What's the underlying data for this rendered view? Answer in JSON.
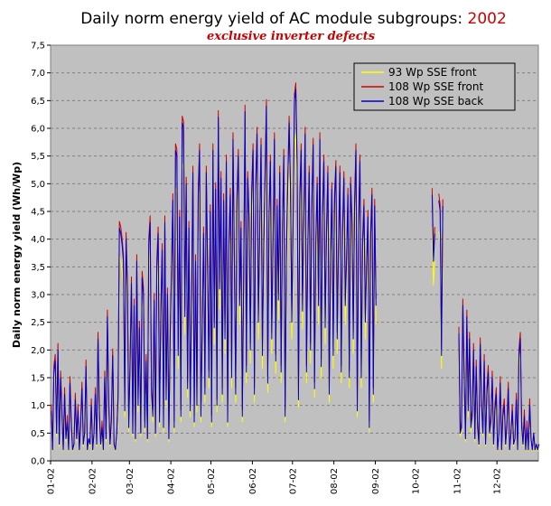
{
  "chart_data": {
    "type": "line",
    "title": "Daily norm energy yield of AC module subgroups:",
    "title_year": "2002",
    "subtitle": "exclusive inverter defects",
    "ylabel": "Daily norm energy yield (Wh/Wp)",
    "xlabel": "",
    "ylim": [
      0,
      7.5
    ],
    "xlim": [
      0,
      365
    ],
    "y_ticks": [
      0,
      0.5,
      1,
      1.5,
      2,
      2.5,
      3,
      3.5,
      4,
      4.5,
      5,
      5.5,
      6,
      6.5,
      7,
      7.5
    ],
    "y_tick_labels": [
      "0,0",
      "0,5",
      "1,0",
      "1,5",
      "2,0",
      "2,5",
      "3,0",
      "3,5",
      "4,0",
      "4,5",
      "5,0",
      "5,5",
      "6,0",
      "6,5",
      "7,0",
      "7,5"
    ],
    "x_ticks": [
      {
        "day": 0,
        "label": "01-02"
      },
      {
        "day": 31,
        "label": "02-02"
      },
      {
        "day": 59,
        "label": "03-02"
      },
      {
        "day": 90,
        "label": "04-02"
      },
      {
        "day": 120,
        "label": "05-02"
      },
      {
        "day": 151,
        "label": "06-02"
      },
      {
        "day": 181,
        "label": "07-02"
      },
      {
        "day": 212,
        "label": "08-02"
      },
      {
        "day": 243,
        "label": "09-02"
      },
      {
        "day": 273,
        "label": "10-02"
      },
      {
        "day": 304,
        "label": "11-02"
      },
      {
        "day": 334,
        "label": "12-02"
      }
    ],
    "grid": true,
    "legend_position": "top-right",
    "series": [
      {
        "name": "93 Wp SSE front",
        "color": "#ffff00",
        "scale": 0.88,
        "lift": 0
      },
      {
        "name": "108 Wp SSE front",
        "color": "#cc0000",
        "scale": 1.0,
        "lift": 0.12
      },
      {
        "name": "108 Wp SSE back",
        "color": "#0000cc",
        "scale": 1.0,
        "lift": 0
      }
    ],
    "days": [
      0.9,
      0.2,
      1.6,
      1.8,
      0.5,
      2.0,
      0.3,
      1.5,
      0.8,
      0.2,
      1.2,
      0.4,
      0.7,
      0.2,
      1.4,
      0.6,
      0.2,
      0.3,
      1.1,
      0.4,
      0.9,
      0.2,
      0.6,
      1.3,
      0.3,
      0.5,
      1.7,
      0.2,
      0.4,
      0.3,
      1.0,
      0.2,
      0.5,
      1.2,
      0.3,
      2.2,
      0.8,
      0.3,
      0.6,
      0.2,
      1.5,
      0.4,
      2.6,
      1.0,
      0.3,
      0.7,
      1.9,
      0.3,
      0.2,
      0.5,
      1.1,
      4.2,
      4.1,
      3.9,
      3.6,
      0.9,
      4.0,
      3.1,
      0.6,
      1.7,
      3.2,
      0.5,
      2.8,
      0.4,
      3.6,
      1.0,
      2.4,
      0.5,
      3.3,
      3.0,
      0.6,
      1.8,
      0.4,
      3.9,
      4.3,
      1.2,
      0.8,
      2.9,
      0.5,
      3.5,
      4.1,
      0.7,
      2.6,
      3.8,
      0.6,
      4.3,
      1.1,
      3.0,
      0.4,
      2.2,
      3.4,
      4.7,
      0.6,
      5.6,
      5.5,
      1.9,
      4.4,
      0.8,
      6.1,
      6.0,
      2.6,
      5.0,
      1.3,
      4.2,
      0.9,
      2.8,
      5.2,
      0.7,
      3.6,
      1.0,
      4.8,
      5.6,
      0.8,
      2.3,
      4.1,
      1.2,
      5.2,
      3.4,
      1.5,
      4.5,
      0.7,
      5.6,
      2.4,
      4.9,
      1.0,
      6.2,
      3.1,
      5.1,
      1.2,
      4.7,
      2.2,
      5.4,
      0.7,
      3.9,
      4.8,
      1.5,
      5.8,
      3.6,
      1.2,
      4.7,
      5.5,
      2.8,
      4.2,
      0.8,
      3.3,
      6.3,
      1.6,
      5.1,
      4.3,
      2.0,
      4.8,
      5.6,
      1.2,
      4.9,
      5.9,
      2.5,
      4.1,
      5.7,
      1.9,
      3.8,
      5.1,
      6.4,
      1.4,
      4.4,
      5.4,
      2.2,
      3.9,
      5.8,
      1.8,
      4.6,
      2.9,
      5.2,
      1.6,
      4.1,
      5.5,
      0.8,
      3.7,
      5.0,
      6.1,
      4.9,
      2.5,
      4.3,
      6.5,
      6.7,
      5.3,
      1.1,
      4.7,
      5.6,
      2.7,
      4.3,
      5.9,
      1.6,
      3.8,
      5.2,
      2.0,
      4.6,
      5.7,
      1.3,
      3.9,
      5.0,
      2.8,
      5.8,
      1.7,
      4.4,
      5.4,
      2.4,
      4.1,
      5.2,
      1.2,
      3.6,
      4.9,
      1.9,
      4.7,
      5.3,
      2.2,
      3.9,
      5.2,
      1.6,
      4.1,
      5.1,
      2.8,
      3.6,
      4.8,
      1.5,
      5.0,
      4.3,
      2.2,
      4.6,
      5.6,
      0.9,
      4.2,
      5.4,
      1.5,
      3.9,
      4.6,
      2.5,
      3.5,
      4.4,
      0.6,
      4.0,
      4.8,
      1.2,
      4.6,
      2.8,
      null,
      null,
      null,
      null,
      null,
      null,
      null,
      null,
      null,
      null,
      null,
      null,
      null,
      null,
      null,
      null,
      null,
      null,
      null,
      null,
      null,
      null,
      null,
      null,
      null,
      null,
      null,
      null,
      null,
      null,
      null,
      null,
      null,
      null,
      null,
      null,
      null,
      null,
      null,
      null,
      null,
      4.8,
      3.6,
      4.1,
      null,
      null,
      4.7,
      4.5,
      1.9,
      4.6,
      null,
      null,
      null,
      null,
      null,
      null,
      null,
      null,
      null,
      null,
      null,
      2.3,
      0.5,
      0.6,
      2.8,
      1.4,
      0.4,
      2.6,
      0.9,
      2.2,
      0.6,
      0.8,
      2.0,
      0.4,
      1.7,
      0.6,
      0.3,
      2.1,
      1.0,
      0.5,
      1.8,
      0.3,
      1.2,
      1.6,
      0.5,
      0.7,
      1.5,
      0.3,
      0.9,
      1.2,
      0.2,
      0.5,
      1.4,
      0.2,
      0.8,
      1.0,
      0.3,
      0.6,
      1.3,
      0.2,
      0.5,
      0.9,
      0.3,
      0.4,
      1.1,
      0.2,
      1.9,
      2.2,
      0.6,
      0.3,
      0.8,
      0.2,
      0.6,
      0.2,
      1.0,
      0.4,
      0.2,
      0.5,
      0.2,
      0.3,
      0.2,
      0.3
    ]
  }
}
